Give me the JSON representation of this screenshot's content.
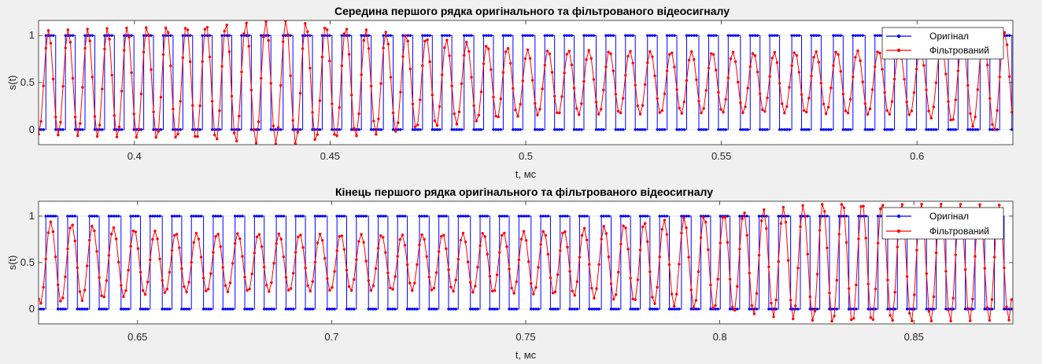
{
  "chart_data": [
    {
      "type": "line",
      "title": "Середина першого рядка оригінального та фільтрованого відеосигналу",
      "xlabel": "t, мс",
      "ylabel": "s(t)",
      "xlim": [
        0.3755,
        0.6245
      ],
      "ylim": [
        -0.16,
        1.16
      ],
      "xticks": [
        "0.4",
        "0.45",
        "0.5",
        "0.55",
        "0.6"
      ],
      "xtick_values": [
        0.4,
        0.45,
        0.5,
        0.55,
        0.6
      ],
      "yticks": [
        "0",
        "0.5",
        "1"
      ],
      "ytick_values": [
        0,
        0.5,
        1
      ],
      "grid": "y-only",
      "legend_location": "top-right",
      "sampling_period_ms": 0.000625,
      "series": [
        {
          "name": "Оригінал",
          "color": "#0000ff",
          "kind": "square wave 0–1",
          "low": 0,
          "high": 1,
          "period_start_ms": 0.005,
          "period_end_ms": 0.0054,
          "high_first_ms": 0.3768
        },
        {
          "name": "Фільтрований",
          "color": "#ff0000",
          "kind": "sinusoid (filtered)",
          "period_start_ms": 0.005,
          "period_end_ms": 0.0054,
          "phase_ref_ms": 0.3768,
          "envelope_points": [
            [
              0.3755,
              1.05
            ],
            [
              0.44,
              1.16
            ],
            [
              0.46,
              1.06
            ],
            [
              0.5,
              0.85
            ],
            [
              0.56,
              0.82
            ],
            [
              0.6,
              0.85
            ],
            [
              0.6245,
              1.05
            ]
          ]
        }
      ]
    },
    {
      "type": "line",
      "title": "Кінець першого рядка оригінального та фільтрованого відеосигналу",
      "xlabel": "t, мс",
      "ylabel": "s(t)",
      "xlim": [
        0.6245,
        0.8755
      ],
      "ylim": [
        -0.16,
        1.16
      ],
      "xticks": [
        "0.65",
        "0.7",
        "0.75",
        "0.8",
        "0.85"
      ],
      "xtick_values": [
        0.65,
        0.7,
        0.75,
        0.8,
        0.85
      ],
      "yticks": [
        "0",
        "0.5",
        "1"
      ],
      "ytick_values": [
        0,
        0.5,
        1
      ],
      "grid": "y-only",
      "legend_location": "top-right",
      "sampling_period_ms": 0.000625,
      "series": [
        {
          "name": "Оригінал",
          "color": "#0000ff",
          "kind": "square wave 0–1",
          "low": 0,
          "high": 1,
          "period_start_ms": 0.0054,
          "period_end_ms": 0.005,
          "high_first_ms": 0.6263
        },
        {
          "name": "Фільтрований",
          "color": "#ff0000",
          "kind": "sinusoid (filtered)",
          "period_start_ms": 0.0054,
          "period_end_ms": 0.005,
          "phase_ref_ms": 0.6263,
          "envelope_points": [
            [
              0.6245,
              0.95
            ],
            [
              0.66,
              0.82
            ],
            [
              0.72,
              0.8
            ],
            [
              0.76,
              0.85
            ],
            [
              0.8,
              1.02
            ],
            [
              0.83,
              1.16
            ],
            [
              0.8755,
              1.12
            ]
          ]
        }
      ]
    }
  ]
}
